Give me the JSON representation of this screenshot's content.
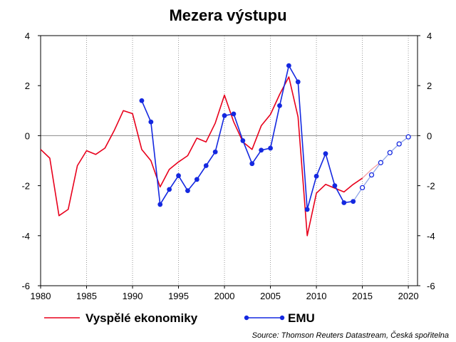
{
  "chart_data": {
    "type": "line",
    "title": "Mezera výstupu",
    "source": "Source: Thomson Reuters Datastream, Česká spořitelna",
    "xlim": [
      1980,
      2021
    ],
    "ylim": [
      -6,
      4
    ],
    "x_ticks": [
      1980,
      1985,
      1990,
      1995,
      2000,
      2005,
      2010,
      2015,
      2020
    ],
    "y_ticks": [
      -6,
      -4,
      -2,
      0,
      2,
      4
    ],
    "grid": {
      "vertical": true,
      "horizontal": false,
      "zero_line": true
    },
    "legend": {
      "placement": "bottom"
    },
    "series": [
      {
        "name": "Vyspělé ekonomiky",
        "color": "#e8001c",
        "forecast_color": "#f4a0a8",
        "marker": "none",
        "data": [
          [
            1980,
            -0.55
          ],
          [
            1981,
            -0.9
          ],
          [
            1982,
            -3.2
          ],
          [
            1983,
            -2.95
          ],
          [
            1984,
            -1.2
          ],
          [
            1985,
            -0.6
          ],
          [
            1986,
            -0.75
          ],
          [
            1987,
            -0.5
          ],
          [
            1988,
            0.2
          ],
          [
            1989,
            1.0
          ],
          [
            1990,
            0.88
          ],
          [
            1991,
            -0.55
          ],
          [
            1992,
            -1.0
          ],
          [
            1993,
            -2.05
          ],
          [
            1994,
            -1.35
          ],
          [
            1995,
            -1.05
          ],
          [
            1996,
            -0.8
          ],
          [
            1997,
            -0.1
          ],
          [
            1998,
            -0.25
          ],
          [
            1999,
            0.5
          ],
          [
            2000,
            1.62
          ],
          [
            2001,
            0.55
          ],
          [
            2002,
            -0.25
          ],
          [
            2003,
            -0.55
          ],
          [
            2004,
            0.4
          ],
          [
            2005,
            0.85
          ],
          [
            2006,
            1.65
          ],
          [
            2007,
            2.35
          ],
          [
            2008,
            0.75
          ],
          [
            2009,
            -4.0
          ],
          [
            2010,
            -2.3
          ],
          [
            2011,
            -1.95
          ],
          [
            2012,
            -2.1
          ],
          [
            2013,
            -2.25
          ],
          [
            2014,
            -1.95
          ],
          [
            2015,
            -1.7
          ],
          [
            2016,
            -1.35
          ],
          [
            2017,
            -1.05
          ]
        ],
        "forecast_from": 2015
      },
      {
        "name": "EMU",
        "color": "#1428e0",
        "forecast_color": "#8fa4e8",
        "marker": "circle",
        "data": [
          [
            1991,
            1.4
          ],
          [
            1992,
            0.55
          ],
          [
            1993,
            -2.75
          ],
          [
            1994,
            -2.15
          ],
          [
            1995,
            -1.6
          ],
          [
            1996,
            -2.2
          ],
          [
            1997,
            -1.75
          ],
          [
            1998,
            -1.2
          ],
          [
            1999,
            -0.65
          ],
          [
            2000,
            0.8
          ],
          [
            2001,
            0.87
          ],
          [
            2002,
            -0.2
          ],
          [
            2003,
            -1.12
          ],
          [
            2004,
            -0.58
          ],
          [
            2005,
            -0.5
          ],
          [
            2006,
            1.2
          ],
          [
            2007,
            2.8
          ],
          [
            2008,
            2.15
          ],
          [
            2009,
            -2.95
          ],
          [
            2010,
            -1.62
          ],
          [
            2011,
            -0.72
          ],
          [
            2012,
            -2.0
          ],
          [
            2013,
            -2.68
          ],
          [
            2014,
            -2.63
          ],
          [
            2015,
            -2.08
          ],
          [
            2016,
            -1.57
          ],
          [
            2017,
            -1.08
          ],
          [
            2018,
            -0.68
          ],
          [
            2019,
            -0.33
          ],
          [
            2020,
            -0.05
          ]
        ],
        "forecast_from": 2014
      }
    ]
  }
}
